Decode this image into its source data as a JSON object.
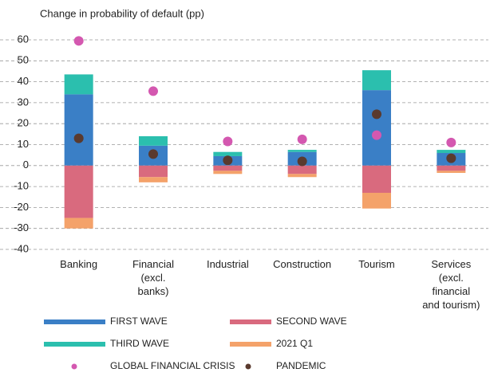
{
  "chart_data": {
    "type": "bar",
    "ylabel": "Change in probability of default (pp)",
    "categories": [
      "Banking",
      "Financial\n(excl.\nbanks)",
      "Industrial",
      "Construction",
      "Tourism",
      "Services\n(excl.\nfinancial\nand tourism)"
    ],
    "series": [
      {
        "name": "FIRST WAVE",
        "type": "bar",
        "color": "#3a7fc6",
        "values": [
          34,
          9.5,
          4.5,
          6.5,
          36,
          6
        ]
      },
      {
        "name": "SECOND WAVE",
        "type": "bar",
        "color": "#d96a7e",
        "values": [
          -25,
          -5.5,
          -2.5,
          -4,
          -13,
          -2.5
        ]
      },
      {
        "name": "THIRD WAVE",
        "type": "bar",
        "color": "#2bbfae",
        "values": [
          9.5,
          4.5,
          2,
          1,
          9.5,
          1.5
        ]
      },
      {
        "name": "2021 Q1",
        "type": "bar",
        "color": "#f4a26a",
        "values": [
          -5,
          -2.5,
          -1.5,
          -1.5,
          -7.5,
          -1
        ]
      },
      {
        "name": "GLOBAL FINANCIAL CRISIS",
        "type": "scatter",
        "color": "#d458b0",
        "values": [
          59.5,
          35.5,
          11.5,
          12.5,
          14.5,
          11
        ]
      },
      {
        "name": "PANDEMIC",
        "type": "scatter",
        "color": "#5a3a2e",
        "values": [
          13,
          5.5,
          2.5,
          2,
          24.5,
          3.5
        ]
      }
    ],
    "ylim": [
      -40,
      60
    ],
    "yticks": [
      -40,
      -30,
      -20,
      -10,
      0,
      10,
      20,
      30,
      40,
      50,
      60
    ],
    "grid": true
  }
}
